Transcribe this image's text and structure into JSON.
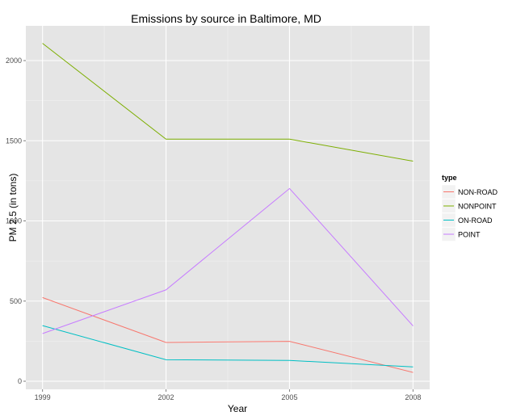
{
  "chart_data": {
    "type": "line",
    "title": "Emissions by source in Baltimore, MD",
    "xlabel": "Year",
    "ylabel": "PM 2.5 (in tons)",
    "x": [
      1999,
      2002,
      2005,
      2008
    ],
    "xlim": [
      1999,
      2008
    ],
    "ylim": [
      0,
      2200
    ],
    "x_ticks": [
      1999,
      2002,
      2005,
      2008
    ],
    "y_ticks": [
      0,
      500,
      1000,
      1500,
      2000
    ],
    "grid": true,
    "background": "#e5e5e5",
    "legend": {
      "title": "type",
      "position": "right"
    },
    "series": [
      {
        "name": "NON-ROAD",
        "color": "#f8766d",
        "values": [
          522,
          242,
          249,
          55
        ]
      },
      {
        "name": "NONPOINT",
        "color": "#7cae00",
        "values": [
          2108,
          1510,
          1510,
          1373
        ]
      },
      {
        "name": "ON-ROAD",
        "color": "#00bfc4",
        "values": [
          347,
          134,
          130,
          89
        ]
      },
      {
        "name": "POINT",
        "color": "#c77cff",
        "values": [
          297,
          570,
          1202,
          345
        ]
      }
    ]
  }
}
